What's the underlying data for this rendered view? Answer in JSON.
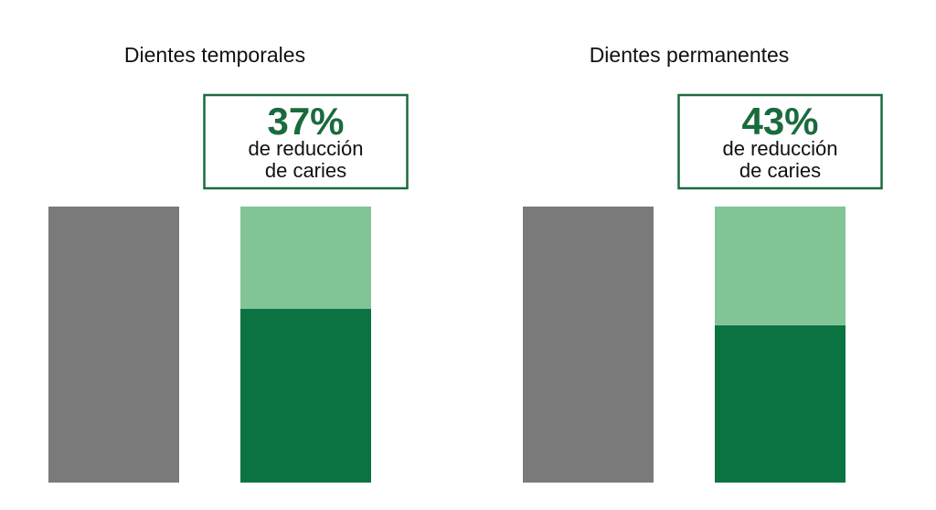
{
  "chart_data": [
    {
      "type": "bar",
      "title": "Dientes temporales",
      "categories": [
        null,
        null
      ],
      "ylim": [
        0,
        100
      ],
      "series": [
        {
          "color": "#7a7a7a",
          "values": [
            100,
            null
          ]
        },
        {
          "color": "#0a7341",
          "values": [
            null,
            63
          ]
        },
        {
          "color": "#82c595",
          "values": [
            null,
            37
          ],
          "value_labels": [
            null,
            "37%"
          ]
        }
      ],
      "caption": [
        "de reducción",
        "de caries"
      ]
    },
    {
      "type": "bar",
      "title": "Dientes permanentes",
      "categories": [
        null,
        null
      ],
      "ylim": [
        0,
        100
      ],
      "series": [
        {
          "color": "#7a7a7a",
          "values": [
            100,
            null
          ]
        },
        {
          "color": "#0a7341",
          "values": [
            null,
            57
          ]
        },
        {
          "color": "#82c595",
          "values": [
            null,
            43
          ],
          "value_labels": [
            null,
            "43%"
          ]
        }
      ],
      "caption": [
        "de reducción",
        "de caries"
      ]
    }
  ]
}
